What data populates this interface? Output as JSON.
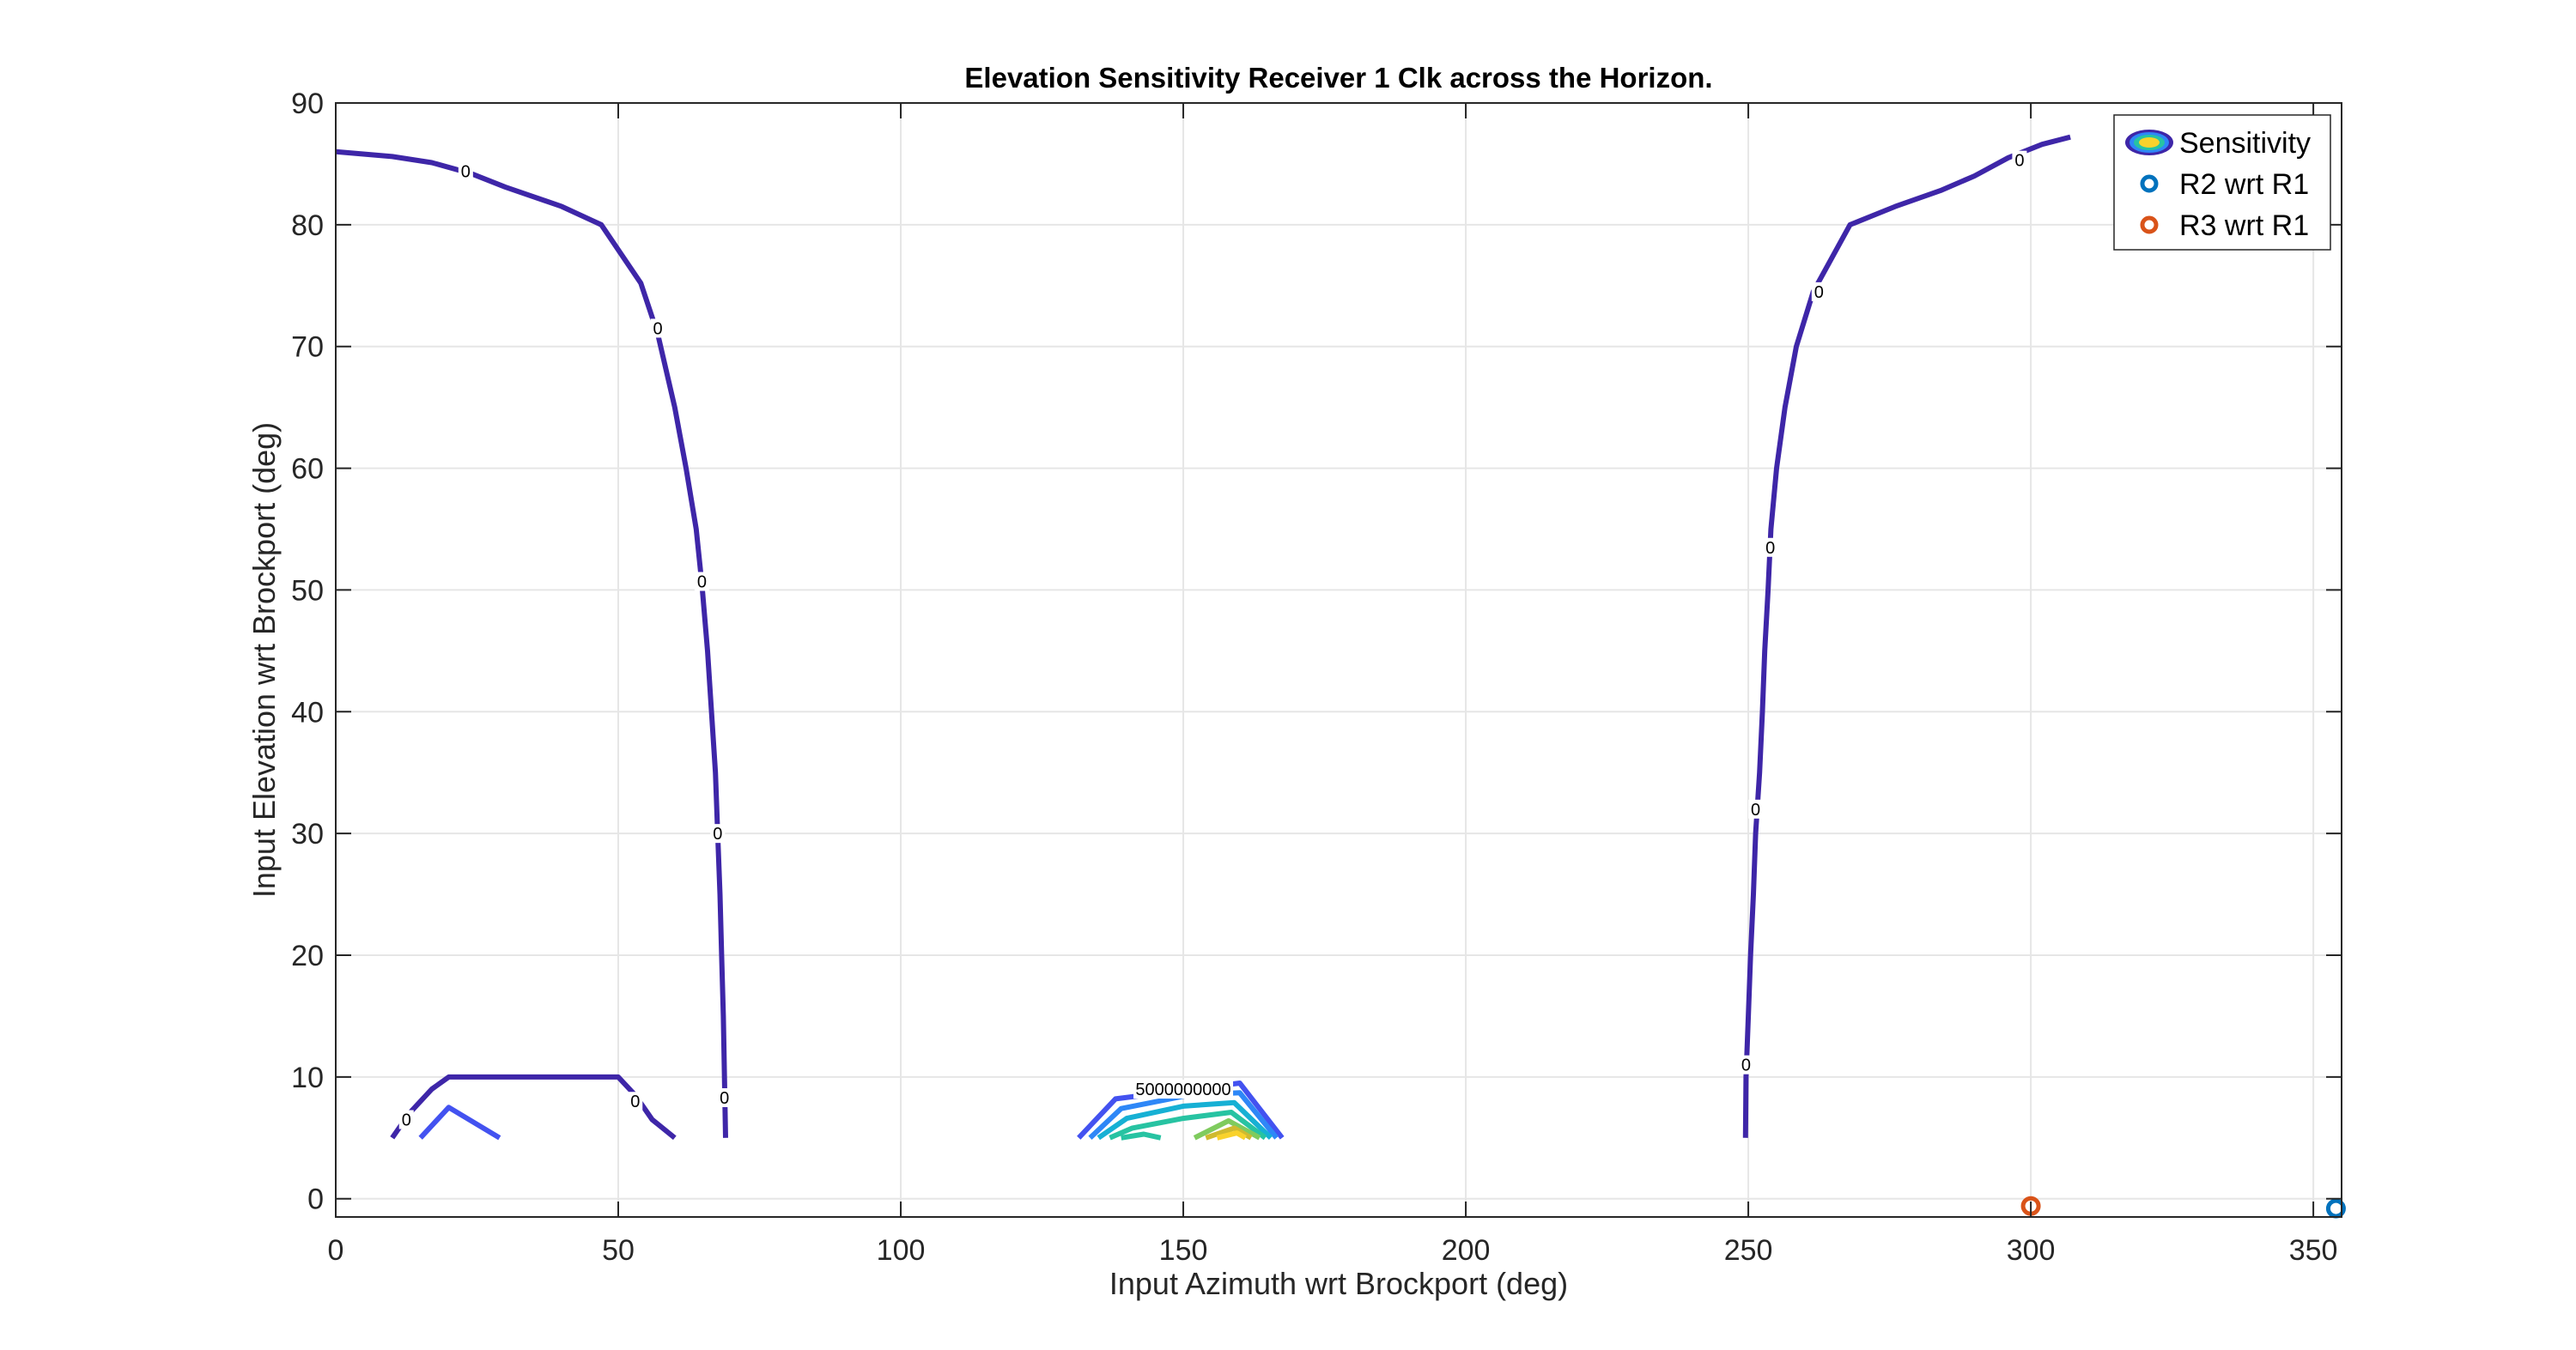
{
  "figure": {
    "title": "Elevation Sensitivity Receiver 1 Clk across the Horizon.",
    "xlabel": "Input Azimuth wrt Brockport (deg)",
    "ylabel": "Input Elevation wrt Brockport (deg)"
  },
  "legend": {
    "placement": "top-right",
    "items": [
      {
        "label": "Sensitivity",
        "icon": "contour-ellipse-icon"
      },
      {
        "label": "R2 wrt R1",
        "icon": "circle-marker-icon",
        "color": "#0072BD"
      },
      {
        "label": "R3 wrt R1",
        "icon": "circle-marker-icon",
        "color": "#D95319"
      }
    ]
  },
  "chart_data": {
    "type": "contour",
    "title": "Elevation Sensitivity Receiver 1 Clk across the Horizon.",
    "xlabel": "Input Azimuth wrt Brockport (deg)",
    "ylabel": "Input Elevation wrt Brockport (deg)",
    "xlim": [
      0,
      355
    ],
    "ylim": [
      -1.5,
      90
    ],
    "xticks": [
      0,
      50,
      100,
      150,
      200,
      250,
      300,
      350
    ],
    "yticks": [
      0,
      10,
      20,
      30,
      40,
      50,
      60,
      70,
      80,
      90
    ],
    "grid": true,
    "legend_placement": "top-right",
    "colormap": [
      "#3E26A8",
      "#4352F0",
      "#2E87F7",
      "#16B0D4",
      "#27C3A2",
      "#7FCB5E",
      "#CFBA2F",
      "#F9D22C"
    ],
    "contours": [
      {
        "level": "0",
        "color": "#3E26A8",
        "points": [
          [
            0,
            86
          ],
          [
            10,
            85.6
          ],
          [
            17,
            85.1
          ],
          [
            24,
            84.2
          ],
          [
            30,
            83.1
          ],
          [
            40,
            81.5
          ],
          [
            47,
            80
          ],
          [
            54,
            75.2
          ],
          [
            57,
            71
          ],
          [
            60,
            65
          ],
          [
            62,
            60
          ],
          [
            63.8,
            55
          ],
          [
            64.8,
            50.5
          ],
          [
            65.8,
            45
          ],
          [
            66.5,
            40
          ],
          [
            67.2,
            35
          ],
          [
            67.6,
            30
          ],
          [
            68,
            25
          ],
          [
            68.3,
            20
          ],
          [
            68.6,
            15
          ],
          [
            68.8,
            10
          ],
          [
            69,
            5
          ]
        ],
        "labels": [
          {
            "text": "0",
            "x": 23,
            "y": 84.4
          },
          {
            "text": "0",
            "x": 57,
            "y": 71.5
          },
          {
            "text": "0",
            "x": 64.8,
            "y": 50.7
          },
          {
            "text": "0",
            "x": 67.6,
            "y": 30
          },
          {
            "text": "0",
            "x": 68.8,
            "y": 8.3
          }
        ]
      },
      {
        "level": "0",
        "color": "#3E26A8",
        "points": [
          [
            249.5,
            5
          ],
          [
            249.6,
            10
          ],
          [
            250,
            15
          ],
          [
            250.4,
            20
          ],
          [
            250.9,
            25
          ],
          [
            251.3,
            30
          ],
          [
            252,
            35
          ],
          [
            252.5,
            40
          ],
          [
            252.9,
            45
          ],
          [
            253.5,
            50
          ],
          [
            254,
            55
          ],
          [
            255,
            60
          ],
          [
            256.5,
            65
          ],
          [
            258.5,
            70
          ],
          [
            261.5,
            74.5
          ],
          [
            268,
            80
          ],
          [
            276,
            81.5
          ],
          [
            284,
            82.8
          ],
          [
            290,
            84
          ],
          [
            296,
            85.5
          ],
          [
            302,
            86.6
          ],
          [
            307,
            87.2
          ]
        ],
        "labels": [
          {
            "text": "0",
            "x": 249.6,
            "y": 11
          },
          {
            "text": "0",
            "x": 251.3,
            "y": 32
          },
          {
            "text": "0",
            "x": 253.9,
            "y": 53.5
          },
          {
            "text": "0",
            "x": 262.5,
            "y": 74.5
          },
          {
            "text": "0",
            "x": 298,
            "y": 85.3
          }
        ]
      },
      {
        "level": "0",
        "color": "#3E26A8",
        "points": [
          [
            10,
            5
          ],
          [
            13,
            7
          ],
          [
            17,
            9
          ],
          [
            20,
            10
          ],
          [
            50,
            10
          ],
          [
            53,
            8.5
          ],
          [
            56,
            6.5
          ],
          [
            60,
            5
          ]
        ],
        "labels": [
          {
            "text": "0",
            "x": 12.5,
            "y": 6.5
          },
          {
            "text": "0",
            "x": 53,
            "y": 8
          }
        ]
      },
      {
        "level": "low",
        "color": "#4352F0",
        "points": [
          [
            15,
            5
          ],
          [
            20,
            7.5
          ],
          [
            29,
            5
          ]
        ],
        "labels": []
      },
      {
        "level": "5000000000",
        "color": "#4352F0",
        "points": [
          [
            131.5,
            5
          ],
          [
            138,
            8.2
          ],
          [
            160,
            9.5
          ],
          [
            167.5,
            5
          ]
        ],
        "labels": [
          {
            "text": "5000000000",
            "x": 150,
            "y": 9
          }
        ]
      },
      {
        "level": "c3",
        "color": "#2E87F7",
        "points": [
          [
            133.5,
            5
          ],
          [
            139,
            7.4
          ],
          [
            151,
            8.5
          ],
          [
            160,
            8.7
          ],
          [
            166.5,
            5
          ]
        ],
        "labels": []
      },
      {
        "level": "c4",
        "color": "#16B0D4",
        "points": [
          [
            135,
            5
          ],
          [
            140,
            6.6
          ],
          [
            150,
            7.6
          ],
          [
            159,
            7.9
          ],
          [
            165.5,
            5
          ]
        ],
        "labels": []
      },
      {
        "level": "c5",
        "color": "#27C3A2",
        "points": [
          [
            137,
            5
          ],
          [
            141,
            5.8
          ],
          [
            150,
            6.6
          ],
          [
            158.5,
            7.1
          ],
          [
            164.5,
            5
          ]
        ],
        "labels": []
      },
      {
        "level": "c6",
        "color": "#27C3A2",
        "points": [
          [
            139,
            5
          ],
          [
            143,
            5.3
          ],
          [
            146,
            5
          ]
        ],
        "labels": []
      },
      {
        "level": "c7",
        "color": "#7FCB5E",
        "points": [
          [
            152,
            5
          ],
          [
            158,
            6.4
          ],
          [
            163.5,
            5
          ]
        ],
        "labels": []
      },
      {
        "level": "c8",
        "color": "#CFBA2F",
        "points": [
          [
            154,
            5
          ],
          [
            159,
            5.8
          ],
          [
            162,
            5
          ]
        ],
        "labels": []
      },
      {
        "level": "c9",
        "color": "#F9D22C",
        "points": [
          [
            156,
            5
          ],
          [
            159.5,
            5.4
          ],
          [
            161,
            5
          ]
        ],
        "labels": []
      }
    ],
    "series": [
      {
        "name": "R2 wrt R1",
        "color": "#0072BD",
        "points": [
          [
            354,
            -0.8
          ]
        ]
      },
      {
        "name": "R3 wrt R1",
        "color": "#D95319",
        "points": [
          [
            300,
            -0.6
          ]
        ]
      }
    ]
  }
}
